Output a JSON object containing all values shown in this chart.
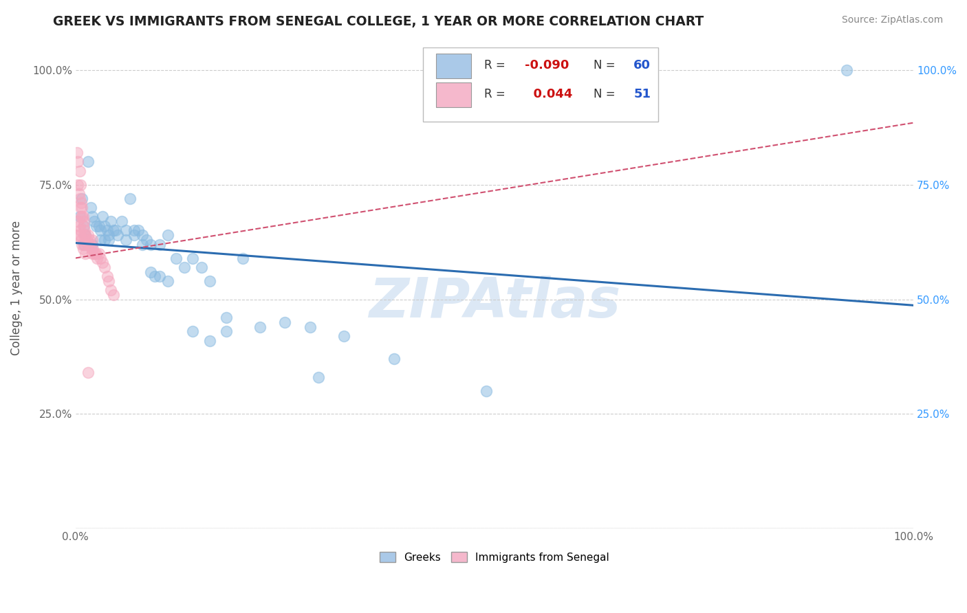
{
  "title": "GREEK VS IMMIGRANTS FROM SENEGAL COLLEGE, 1 YEAR OR MORE CORRELATION CHART",
  "source_text": "Source: ZipAtlas.com",
  "ylabel": "College, 1 year or more",
  "watermark": "ZIPAtlas",
  "blue_scatter_x": [
    0.005,
    0.008,
    0.01,
    0.012,
    0.015,
    0.018,
    0.02,
    0.022,
    0.025,
    0.028,
    0.03,
    0.032,
    0.035,
    0.038,
    0.04,
    0.042,
    0.045,
    0.048,
    0.05,
    0.055,
    0.06,
    0.065,
    0.07,
    0.075,
    0.08,
    0.09,
    0.1,
    0.11,
    0.12,
    0.13,
    0.14,
    0.15,
    0.16,
    0.18,
    0.2,
    0.22,
    0.25,
    0.28,
    0.32,
    0.38,
    0.01,
    0.015,
    0.02,
    0.03,
    0.035,
    0.04,
    0.06,
    0.07,
    0.08,
    0.085,
    0.09,
    0.095,
    0.1,
    0.11,
    0.14,
    0.16,
    0.18,
    0.29,
    0.49,
    0.92
  ],
  "blue_scatter_y": [
    0.68,
    0.72,
    0.66,
    0.64,
    0.8,
    0.7,
    0.68,
    0.67,
    0.66,
    0.66,
    0.65,
    0.68,
    0.66,
    0.65,
    0.64,
    0.67,
    0.65,
    0.65,
    0.64,
    0.67,
    0.65,
    0.72,
    0.64,
    0.65,
    0.64,
    0.62,
    0.62,
    0.64,
    0.59,
    0.57,
    0.59,
    0.57,
    0.54,
    0.46,
    0.59,
    0.44,
    0.45,
    0.44,
    0.42,
    0.37,
    0.62,
    0.62,
    0.62,
    0.63,
    0.63,
    0.63,
    0.63,
    0.65,
    0.62,
    0.63,
    0.56,
    0.55,
    0.55,
    0.54,
    0.43,
    0.41,
    0.43,
    0.33,
    0.3,
    1.0
  ],
  "pink_scatter_x": [
    0.002,
    0.003,
    0.003,
    0.004,
    0.005,
    0.005,
    0.006,
    0.006,
    0.007,
    0.007,
    0.008,
    0.008,
    0.009,
    0.009,
    0.01,
    0.01,
    0.011,
    0.012,
    0.013,
    0.014,
    0.015,
    0.016,
    0.017,
    0.018,
    0.019,
    0.02,
    0.02,
    0.021,
    0.022,
    0.023,
    0.025,
    0.026,
    0.028,
    0.03,
    0.032,
    0.035,
    0.038,
    0.04,
    0.042,
    0.045,
    0.002,
    0.003,
    0.004,
    0.005,
    0.006,
    0.007,
    0.008,
    0.009,
    0.01,
    0.012,
    0.015
  ],
  "pink_scatter_y": [
    0.82,
    0.8,
    0.75,
    0.73,
    0.78,
    0.72,
    0.75,
    0.7,
    0.71,
    0.68,
    0.7,
    0.68,
    0.68,
    0.66,
    0.67,
    0.64,
    0.65,
    0.64,
    0.63,
    0.62,
    0.64,
    0.62,
    0.63,
    0.62,
    0.61,
    0.63,
    0.6,
    0.61,
    0.6,
    0.6,
    0.6,
    0.59,
    0.6,
    0.59,
    0.58,
    0.57,
    0.55,
    0.54,
    0.52,
    0.51,
    0.64,
    0.67,
    0.66,
    0.64,
    0.65,
    0.63,
    0.62,
    0.61,
    0.62,
    0.6,
    0.34
  ],
  "blue_line_x": [
    0.0,
    1.0
  ],
  "blue_line_y": [
    0.623,
    0.487
  ],
  "pink_line_x": [
    0.0,
    1.0
  ],
  "pink_line_y": [
    0.59,
    0.885
  ],
  "xlim": [
    0.0,
    1.0
  ],
  "ylim": [
    0.0,
    1.05
  ],
  "xticks": [
    0.0,
    0.25,
    0.5,
    0.75,
    1.0
  ],
  "xticklabels": [
    "0.0%",
    "",
    "",
    "",
    "100.0%"
  ],
  "yticks_left": [
    0.25,
    0.5,
    0.75,
    1.0
  ],
  "yticklabels_left": [
    "25.0%",
    "50.0%",
    "75.0%",
    "100.0%"
  ],
  "yticks_right": [
    0.25,
    0.5,
    0.75,
    1.0
  ],
  "yticklabels_right": [
    "25.0%",
    "50.0%",
    "75.0%",
    "100.0%"
  ],
  "grid_yticks": [
    0.0,
    0.25,
    0.5,
    0.75,
    1.0
  ],
  "grid_color": "#cccccc",
  "blue_dot_color": "#87b9e0",
  "pink_dot_color": "#f5a8bf",
  "blue_line_color": "#2b6cb0",
  "pink_line_color": "#d05070",
  "legend_blue_face": "#aac9e8",
  "legend_pink_face": "#f5b8cc",
  "title_color": "#222222",
  "source_color": "#888888",
  "right_tick_color": "#3399ff",
  "watermark_color": "#dce8f5",
  "r_value_color": "#cc1111",
  "n_value_color": "#2255cc"
}
